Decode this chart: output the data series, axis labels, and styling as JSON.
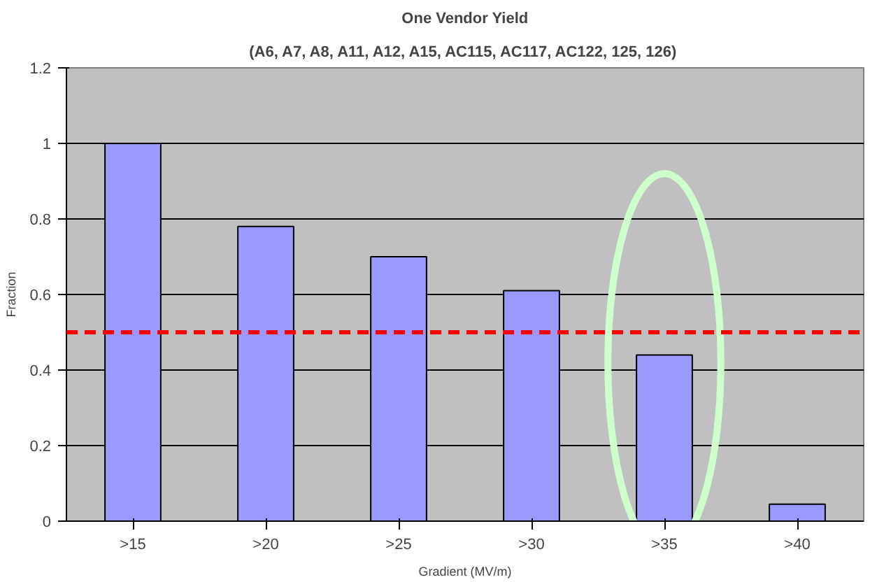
{
  "chart_data": {
    "type": "bar",
    "title": "One Vendor Yield",
    "subtitle": "(A6, A7, A8, A11, A12, A15, AC115, AC117, AC122, 125, 126)",
    "xlabel": "Gradient (MV/m)",
    "ylabel": "Fraction",
    "categories": [
      ">15",
      ">20",
      ">25",
      ">30",
      ">35",
      ">40"
    ],
    "values": [
      1.0,
      0.78,
      0.7,
      0.61,
      0.44,
      0.045
    ],
    "color": "#9999ff",
    "ylim": [
      0,
      1.2
    ],
    "yticks": [
      0,
      0.2,
      0.4,
      0.6,
      0.8,
      1,
      1.2
    ],
    "grid": "y",
    "ref_lines": [
      {
        "axis": "y",
        "value": 0.5,
        "color": "#ff0000",
        "line_style": "dashed"
      }
    ]
  }
}
